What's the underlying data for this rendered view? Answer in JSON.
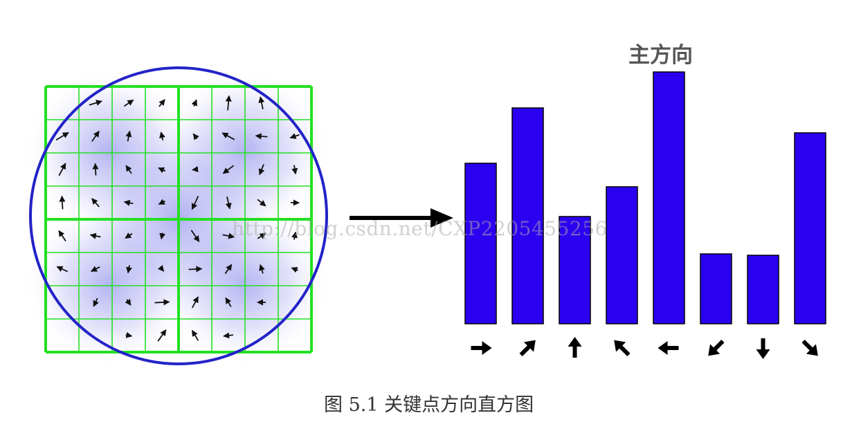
{
  "peak_label": "主方向",
  "caption": "图 5.1 关键点方向直方图",
  "watermark": "http://blog.csdn.net/CXP2205455256",
  "colors": {
    "bar": "#2b00f0",
    "grid": "#22e022",
    "circle": "#2323c8",
    "arrow": "#111111",
    "blob": "#6f6fe6"
  },
  "icons": [
    "right-arrow-icon",
    "up-right-arrow-icon",
    "up-arrow-icon",
    "up-left-arrow-icon",
    "left-arrow-icon",
    "down-left-arrow-icon",
    "down-arrow-icon",
    "down-right-arrow-icon"
  ],
  "chart_data": {
    "type": "bar",
    "title": "主方向",
    "categories": [
      "right",
      "up-right",
      "up",
      "up-left",
      "left",
      "down-left",
      "down",
      "down-right"
    ],
    "angles_deg": [
      0,
      45,
      90,
      135,
      180,
      225,
      270,
      315
    ],
    "values": [
      232,
      312,
      155,
      198,
      364,
      101,
      99,
      276
    ],
    "peak_category": "left"
  }
}
